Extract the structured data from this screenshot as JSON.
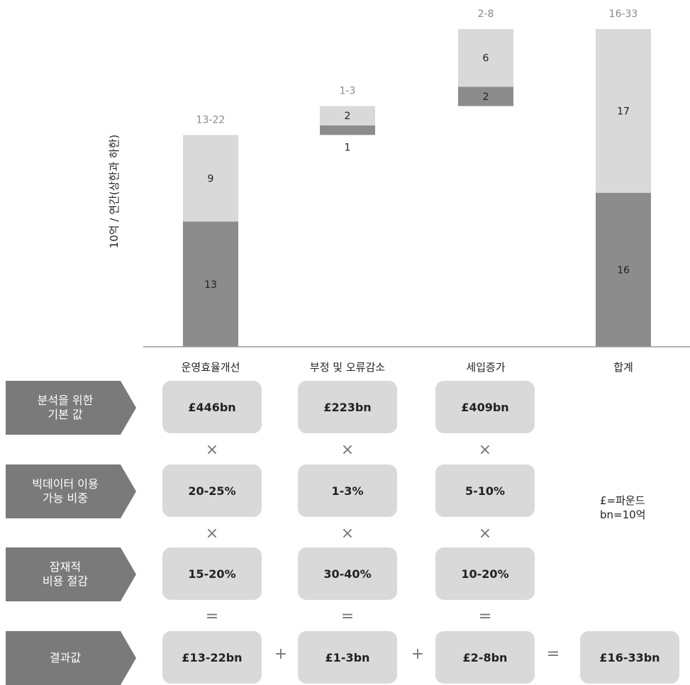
{
  "chart_data": {
    "type": "bar",
    "stacked": true,
    "ylabel": "10억 / 연간(상한과 하한)",
    "categories": [
      "운영효율개선",
      "부정 및 오류감소",
      "세입증가",
      "합계"
    ],
    "bases": [
      0,
      22,
      25,
      0
    ],
    "series": [
      {
        "values": [
          13,
          1,
          2,
          16
        ],
        "color": "#8c8c8c"
      },
      {
        "values": [
          9,
          2,
          6,
          17
        ],
        "color": "#d9d9d9"
      }
    ],
    "segment_labels": [
      [
        "13",
        "9"
      ],
      [
        "1",
        "2"
      ],
      [
        "2",
        "6"
      ],
      [
        "16",
        "17"
      ]
    ],
    "range_labels": [
      "13-22",
      "1-3",
      "2-8",
      "16-33"
    ],
    "ylim": [
      0,
      33
    ],
    "grid": false,
    "legend": "none"
  },
  "table": {
    "rows": [
      {
        "label": "분석을 위한\n기본 값",
        "values": [
          "£446bn",
          "£223bn",
          "£409bn"
        ]
      },
      {
        "label": "빅데이터 이용\n가능 비중",
        "values": [
          "20-25%",
          "1-3%",
          "5-10%"
        ]
      },
      {
        "label": "잠재적\n비용 절감",
        "values": [
          "15-20%",
          "30-40%",
          "10-20%"
        ]
      },
      {
        "label": "결과값",
        "values": [
          "£13-22bn",
          "£1-3bn",
          "£2-8bn"
        ],
        "total": "£16-33bn"
      }
    ],
    "multiply_symbol": "×",
    "equals_symbol": "=",
    "plus_symbol": "+"
  },
  "legend_note": {
    "line1": "£=파운드",
    "line2": "bn=10억"
  },
  "colors": {
    "dark": "#8c8c8c",
    "light": "#d9d9d9",
    "label_bg": "#7a7a7a",
    "range_label": "#8a8a8a"
  }
}
